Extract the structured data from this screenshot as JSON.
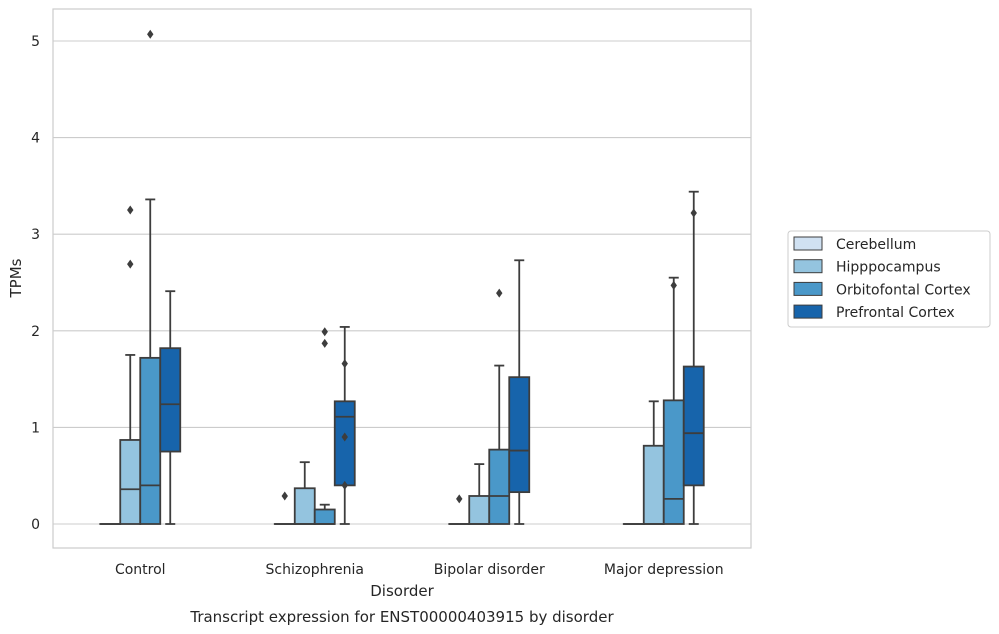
{
  "chart_data": {
    "type": "box",
    "caption": "Transcript expression for ENST00000403915 by disorder",
    "xlabel": "Disorder",
    "ylabel": "TPMs",
    "ylim": [
      -0.25,
      5.35
    ],
    "yticks": [
      0,
      1,
      2,
      3,
      4,
      5
    ],
    "grid": true,
    "legend_position": "right",
    "categories": [
      "Control",
      "Schizophrenia",
      "Bipolar disorder",
      "Major depression"
    ],
    "series": [
      {
        "name": "Cerebellum",
        "color": "#d0e1f2",
        "boxes": [
          {
            "q1": 0,
            "median": 0,
            "q3": 0,
            "whisker_low": 0,
            "whisker_high": 0,
            "outliers": []
          },
          {
            "q1": 0,
            "median": 0,
            "q3": 0,
            "whisker_low": 0,
            "whisker_high": 0,
            "outliers": [
              0.29
            ]
          },
          {
            "q1": 0,
            "median": 0,
            "q3": 0,
            "whisker_low": 0,
            "whisker_high": 0,
            "outliers": [
              0.26
            ]
          },
          {
            "q1": 0,
            "median": 0,
            "q3": 0,
            "whisker_low": 0,
            "whisker_high": 0,
            "outliers": []
          }
        ]
      },
      {
        "name": "Hipppocampus",
        "color": "#94c4df",
        "boxes": [
          {
            "q1": 0,
            "median": 0.36,
            "q3": 0.87,
            "whisker_low": 0,
            "whisker_high": 1.75,
            "outliers": [
              3.25,
              2.69
            ]
          },
          {
            "q1": 0,
            "median": 0,
            "q3": 0.37,
            "whisker_low": 0,
            "whisker_high": 0.64,
            "outliers": []
          },
          {
            "q1": 0,
            "median": 0,
            "q3": 0.29,
            "whisker_low": 0,
            "whisker_high": 0.62,
            "outliers": []
          },
          {
            "q1": 0,
            "median": 0,
            "q3": 0.81,
            "whisker_low": 0,
            "whisker_high": 1.27,
            "outliers": []
          }
        ]
      },
      {
        "name": "Orbitofontal Cortex",
        "color": "#4a98c9",
        "boxes": [
          {
            "q1": 0,
            "median": 0.4,
            "q3": 1.72,
            "whisker_low": 0,
            "whisker_high": 3.36,
            "outliers": [
              5.07
            ]
          },
          {
            "q1": 0,
            "median": 0,
            "q3": 0.15,
            "whisker_low": 0,
            "whisker_high": 0.2,
            "outliers": [
              1.99,
              1.87
            ]
          },
          {
            "q1": 0,
            "median": 0.29,
            "q3": 0.77,
            "whisker_low": 0,
            "whisker_high": 1.64,
            "outliers": [
              2.39
            ]
          },
          {
            "q1": 0,
            "median": 0.26,
            "q3": 1.28,
            "whisker_low": 0,
            "whisker_high": 2.55,
            "outliers": [
              2.47
            ]
          }
        ]
      },
      {
        "name": "Prefrontal Cortex",
        "color": "#1764ab",
        "boxes": [
          {
            "q1": 0.75,
            "median": 1.24,
            "q3": 1.82,
            "whisker_low": 0,
            "whisker_high": 2.41,
            "outliers": []
          },
          {
            "q1": 0.4,
            "median": 1.11,
            "q3": 1.27,
            "whisker_low": 0,
            "whisker_high": 2.04,
            "outliers": [
              1.66,
              0.9,
              0.4
            ]
          },
          {
            "q1": 0.33,
            "median": 0.76,
            "q3": 1.52,
            "whisker_low": 0,
            "whisker_high": 2.73,
            "outliers": []
          },
          {
            "q1": 0.4,
            "median": 0.94,
            "q3": 1.63,
            "whisker_low": 0,
            "whisker_high": 3.44,
            "outliers": [
              3.22
            ]
          }
        ]
      }
    ]
  }
}
